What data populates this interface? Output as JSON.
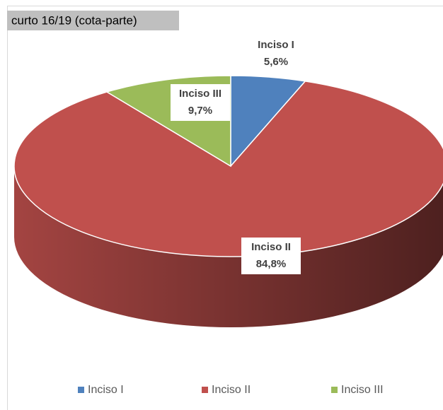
{
  "chart_data": {
    "type": "pie",
    "title": "curto 16/19 (cota-parte)",
    "categories": [
      "Inciso I",
      "Inciso II",
      "Inciso III"
    ],
    "values": [
      5.6,
      84.8,
      9.7
    ],
    "value_labels": [
      "5,6%",
      "84,8%",
      "9,7%"
    ],
    "colors": [
      "#4f81bd",
      "#c0504d",
      "#9bbb59"
    ],
    "legend": "bottom"
  }
}
